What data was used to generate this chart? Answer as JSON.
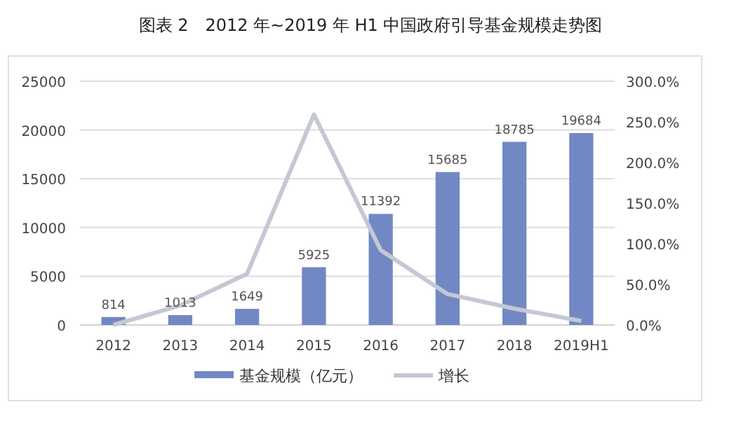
{
  "chart_data": {
    "type": "bar",
    "title": "图表 2　2012 年~2019 年 H1 中国政府引导基金规模走势图",
    "categories": [
      "2012",
      "2013",
      "2014",
      "2015",
      "2016",
      "2017",
      "2018",
      "2019H1"
    ],
    "series": [
      {
        "name": "基金规模（亿元）",
        "color": "#7288c4",
        "values": [
          814,
          1013,
          1649,
          5925,
          11392,
          15685,
          18785,
          19684
        ],
        "value_labels": [
          "814",
          "1013",
          "1649",
          "5925",
          "11392",
          "15685",
          "18785",
          "19684"
        ]
      },
      {
        "name": "增长",
        "color": "#c4c8d4",
        "type": "line",
        "axis": "y2",
        "values": [
          0,
          24,
          63,
          259,
          92,
          38,
          20,
          5
        ]
      }
    ],
    "ylim": [
      0,
      25000
    ],
    "yticks": [
      0,
      5000,
      10000,
      15000,
      20000,
      25000
    ],
    "y2lim": [
      0,
      300
    ],
    "y2ticks": [
      {
        "value": 0,
        "label": "0.0%"
      },
      {
        "value": 50,
        "label": "50.0%"
      },
      {
        "value": 100,
        "label": "100.0%"
      },
      {
        "value": 150,
        "label": "150.0%"
      },
      {
        "value": 200,
        "label": "200.0%"
      },
      {
        "value": 250,
        "label": "250.0%"
      },
      {
        "value": 300,
        "label": "300.0%"
      }
    ],
    "grid": "y",
    "legend": "bottom",
    "marker": "none",
    "line_style": "solid"
  }
}
